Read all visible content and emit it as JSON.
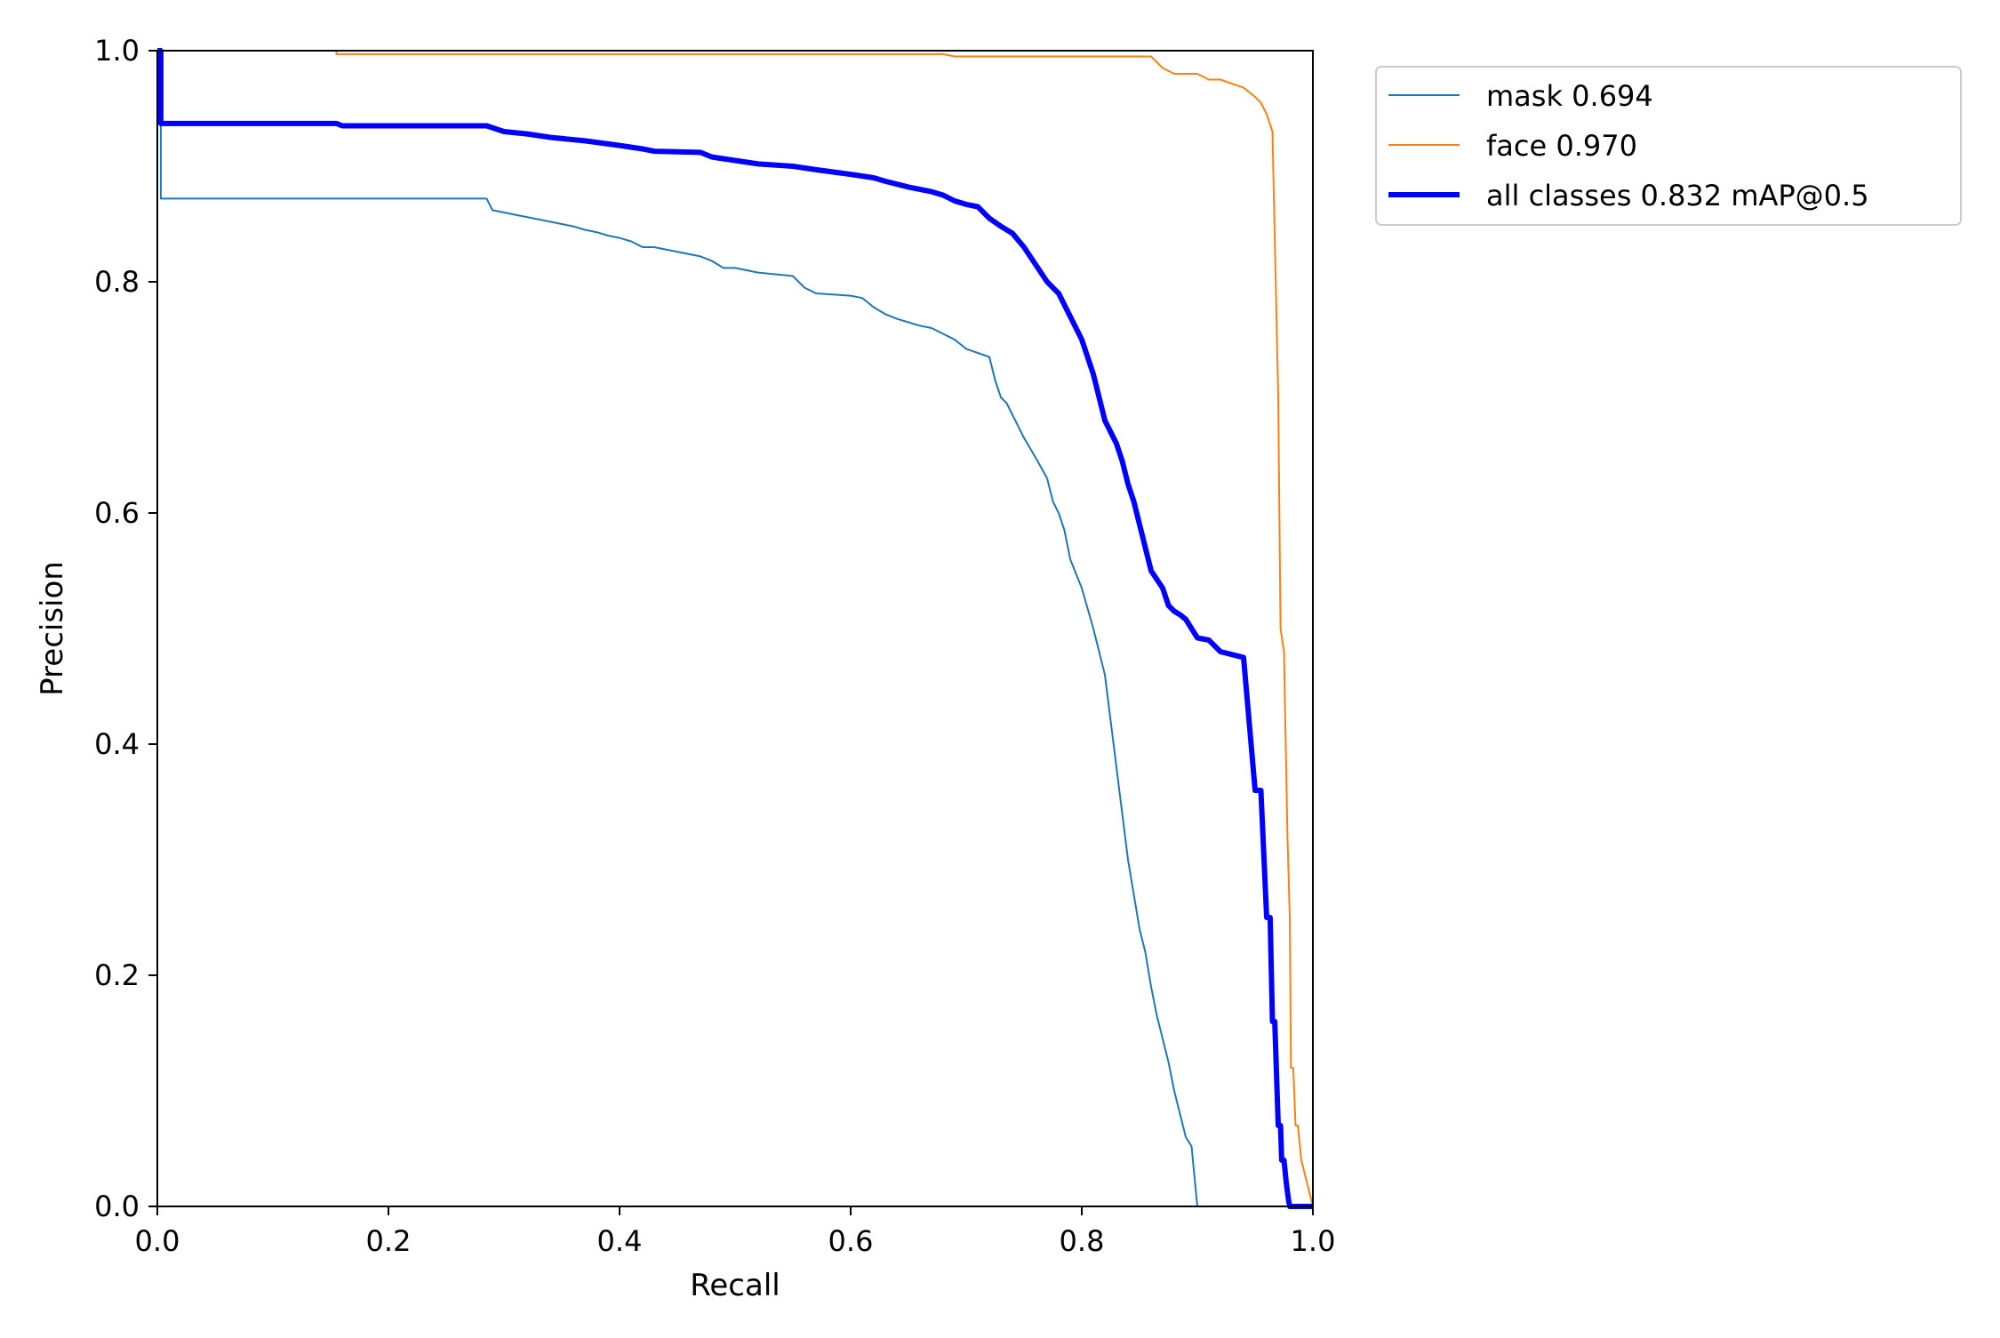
{
  "chart_data": {
    "type": "line",
    "xlabel": "Recall",
    "ylabel": "Precision",
    "xlim": [
      0,
      1
    ],
    "ylim": [
      0,
      1
    ],
    "xticks": [
      "0.0",
      "0.2",
      "0.4",
      "0.6",
      "0.8",
      "1.0"
    ],
    "yticks": [
      "0.0",
      "0.2",
      "0.4",
      "0.6",
      "0.8",
      "1.0"
    ],
    "grid": false,
    "legend_position": "upper-right-outside",
    "series": [
      {
        "name": "mask 0.694",
        "color": "#1f77b4",
        "x": [
          0.0,
          0.003,
          0.003,
          0.05,
          0.1,
          0.15,
          0.2,
          0.25,
          0.285,
          0.29,
          0.3,
          0.31,
          0.34,
          0.35,
          0.36,
          0.37,
          0.38,
          0.39,
          0.4,
          0.41,
          0.42,
          0.43,
          0.44,
          0.47,
          0.48,
          0.49,
          0.5,
          0.51,
          0.52,
          0.55,
          0.56,
          0.57,
          0.6,
          0.61,
          0.62,
          0.63,
          0.64,
          0.66,
          0.67,
          0.68,
          0.69,
          0.7,
          0.72,
          0.725,
          0.73,
          0.735,
          0.74,
          0.75,
          0.76,
          0.77,
          0.775,
          0.78,
          0.785,
          0.79,
          0.8,
          0.81,
          0.82,
          0.825,
          0.83,
          0.835,
          0.84,
          0.845,
          0.85,
          0.855,
          0.86,
          0.865,
          0.87,
          0.875,
          0.88,
          0.885,
          0.89,
          0.895,
          0.9,
          0.905,
          0.91,
          0.915,
          0.92,
          1.0
        ],
        "y": [
          1.0,
          1.0,
          0.872,
          0.872,
          0.872,
          0.872,
          0.872,
          0.872,
          0.872,
          0.862,
          0.86,
          0.858,
          0.852,
          0.85,
          0.848,
          0.845,
          0.843,
          0.84,
          0.838,
          0.835,
          0.83,
          0.83,
          0.828,
          0.822,
          0.818,
          0.812,
          0.812,
          0.81,
          0.808,
          0.805,
          0.795,
          0.79,
          0.788,
          0.786,
          0.778,
          0.772,
          0.768,
          0.762,
          0.76,
          0.755,
          0.75,
          0.742,
          0.735,
          0.715,
          0.7,
          0.695,
          0.685,
          0.665,
          0.648,
          0.63,
          0.61,
          0.6,
          0.585,
          0.56,
          0.535,
          0.5,
          0.46,
          0.42,
          0.38,
          0.34,
          0.3,
          0.27,
          0.24,
          0.22,
          0.19,
          0.165,
          0.145,
          0.125,
          0.1,
          0.08,
          0.06,
          0.052,
          1e-09,
          0.0,
          0.0,
          0.0,
          0.0,
          0.0
        ],
        "width": 2
      },
      {
        "name": "face 0.970",
        "color": "#ff7f0e",
        "x": [
          0.0,
          0.155,
          0.155,
          0.5,
          0.68,
          0.69,
          0.75,
          0.86,
          0.865,
          0.87,
          0.88,
          0.9,
          0.91,
          0.92,
          0.94,
          0.95,
          0.955,
          0.96,
          0.965,
          0.97,
          0.972,
          0.975,
          0.978,
          0.98,
          0.981,
          0.983,
          0.985,
          0.987,
          0.99,
          0.995,
          1.0
        ],
        "y": [
          1.0,
          1.0,
          0.997,
          0.997,
          0.997,
          0.995,
          0.995,
          0.995,
          0.99,
          0.985,
          0.98,
          0.98,
          0.975,
          0.975,
          0.968,
          0.96,
          0.955,
          0.945,
          0.93,
          0.7,
          0.5,
          0.48,
          0.32,
          0.25,
          0.12,
          0.12,
          0.07,
          0.07,
          0.04,
          0.02,
          0.0
        ],
        "width": 2
      },
      {
        "name": "all classes 0.832 mAP@0.5",
        "color": "#0000ff",
        "x": [
          0.0,
          0.003,
          0.003,
          0.05,
          0.1,
          0.155,
          0.16,
          0.2,
          0.25,
          0.285,
          0.3,
          0.32,
          0.34,
          0.37,
          0.4,
          0.42,
          0.43,
          0.47,
          0.48,
          0.5,
          0.52,
          0.55,
          0.57,
          0.6,
          0.62,
          0.63,
          0.65,
          0.67,
          0.68,
          0.69,
          0.7,
          0.71,
          0.72,
          0.73,
          0.74,
          0.75,
          0.76,
          0.77,
          0.78,
          0.79,
          0.8,
          0.81,
          0.82,
          0.83,
          0.835,
          0.84,
          0.845,
          0.85,
          0.855,
          0.86,
          0.87,
          0.875,
          0.88,
          0.885,
          0.89,
          0.895,
          0.9,
          0.91,
          0.92,
          0.94,
          0.95,
          0.955,
          0.96,
          0.963,
          0.965,
          0.967,
          0.97,
          0.972,
          0.973,
          0.975,
          0.977,
          0.979,
          0.98,
          0.982,
          0.985,
          0.988,
          0.99,
          1.0
        ],
        "y": [
          1.0,
          1.0,
          0.937,
          0.937,
          0.937,
          0.937,
          0.935,
          0.935,
          0.935,
          0.935,
          0.93,
          0.928,
          0.925,
          0.922,
          0.918,
          0.915,
          0.913,
          0.912,
          0.908,
          0.905,
          0.902,
          0.9,
          0.897,
          0.893,
          0.89,
          0.887,
          0.882,
          0.878,
          0.875,
          0.87,
          0.867,
          0.865,
          0.855,
          0.848,
          0.842,
          0.83,
          0.815,
          0.8,
          0.79,
          0.77,
          0.75,
          0.72,
          0.68,
          0.66,
          0.645,
          0.625,
          0.61,
          0.59,
          0.57,
          0.55,
          0.535,
          0.52,
          0.515,
          0.512,
          0.508,
          0.5,
          0.492,
          0.49,
          0.48,
          0.475,
          0.36,
          0.36,
          0.25,
          0.25,
          0.16,
          0.16,
          0.07,
          0.07,
          0.04,
          0.04,
          0.02,
          0.005,
          0.0,
          0.0,
          0.0,
          0.0,
          0.0,
          0.0
        ],
        "width": 6
      }
    ]
  }
}
